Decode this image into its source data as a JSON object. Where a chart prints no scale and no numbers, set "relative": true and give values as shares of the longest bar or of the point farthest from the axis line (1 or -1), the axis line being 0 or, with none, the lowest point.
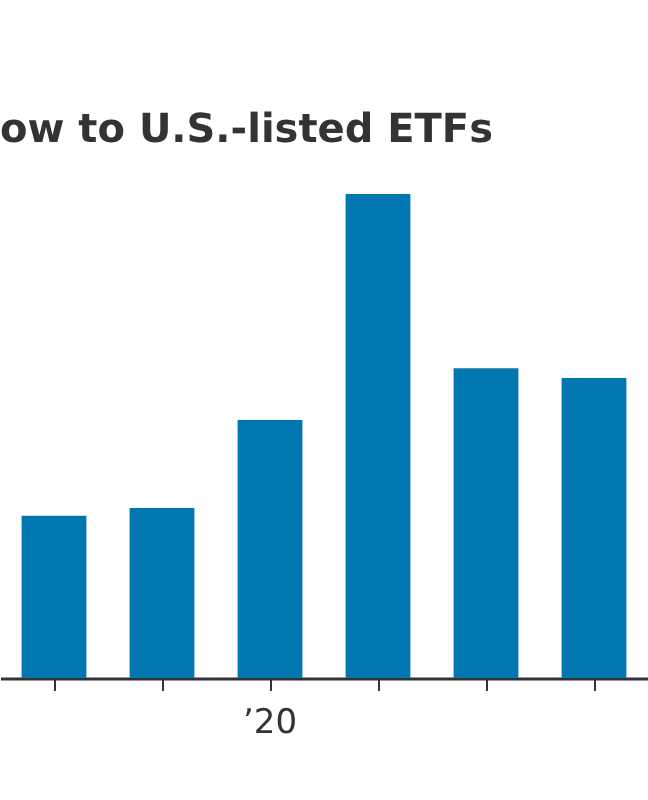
{
  "chart_data": {
    "type": "bar",
    "title": "ow to U.S.-listed ETFs",
    "relative": true,
    "categories": [
      null,
      null,
      "’20",
      null,
      null,
      null
    ],
    "values": [
      0.335,
      0.351,
      0.533,
      1,
      0.64,
      0.62
    ],
    "color": "#0077b0",
    "grid": false
  }
}
